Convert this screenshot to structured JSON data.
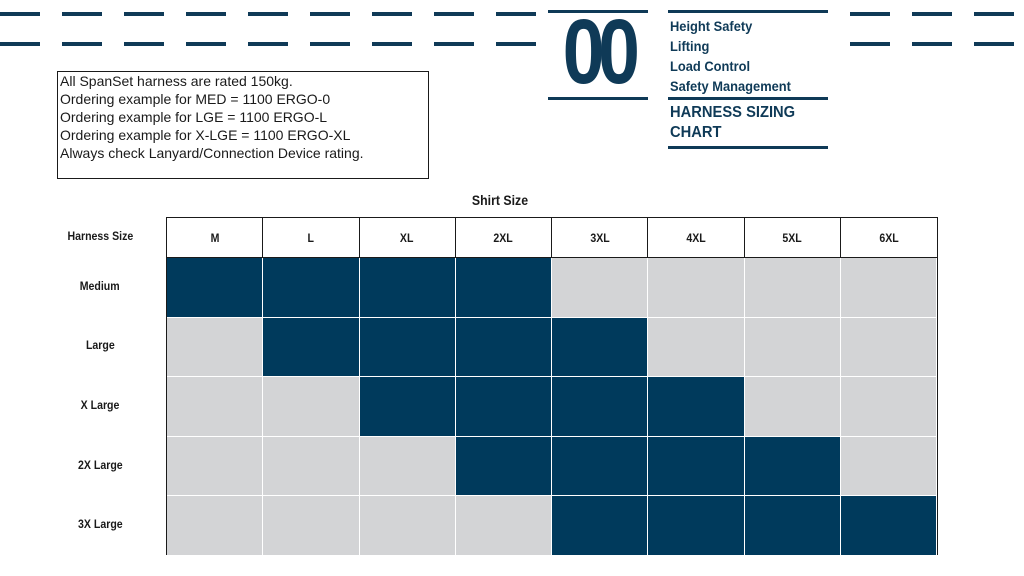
{
  "header": {
    "number": "00",
    "categories": [
      "Height Safety",
      "Lifting",
      "Load Control",
      "Safety Management"
    ],
    "heading_line1": "HARNESS SIZING",
    "heading_line2": "CHART"
  },
  "notes": [
    "All SpanSet harness are rated 150kg.",
    "Ordering example for MED = 1100 ERGO-0",
    "Ordering example for LGE = 1100 ERGO-L",
    "Ordering example for X-LGE = 1100 ERGO-XL",
    "Always check Lanyard/Connection Device rating."
  ],
  "chart_data": {
    "type": "table",
    "column_group_label": "Shirt Size",
    "row_header_label": "Harness Size",
    "columns": [
      "M",
      "L",
      "XL",
      "2XL",
      "3XL",
      "4XL",
      "5XL",
      "6XL"
    ],
    "rows": [
      {
        "label": "Medium",
        "fits": [
          1,
          1,
          1,
          1,
          0,
          0,
          0,
          0
        ]
      },
      {
        "label": "Large",
        "fits": [
          0,
          1,
          1,
          1,
          1,
          0,
          0,
          0
        ]
      },
      {
        "label": "X Large",
        "fits": [
          0,
          0,
          1,
          1,
          1,
          1,
          0,
          0
        ]
      },
      {
        "label": "2X Large",
        "fits": [
          0,
          0,
          0,
          1,
          1,
          1,
          1,
          0
        ]
      },
      {
        "label": "3X Large",
        "fits": [
          0,
          0,
          0,
          0,
          1,
          1,
          1,
          1
        ]
      }
    ],
    "colors": {
      "fit": "#003a5c",
      "no_fit": "#d3d4d6",
      "brand": "#0f3a57"
    }
  }
}
